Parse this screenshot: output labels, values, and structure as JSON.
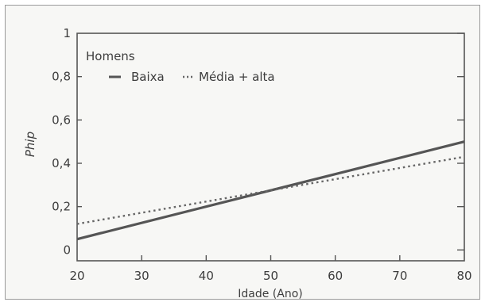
{
  "chart_data": {
    "type": "line",
    "title": "",
    "xlabel": "Idade (Ano)",
    "ylabel": "Phip",
    "xlim": [
      20,
      80
    ],
    "ylim": [
      -0.05,
      1.0
    ],
    "x_ticks": [
      "20",
      "30",
      "40",
      "50",
      "60",
      "70",
      "80"
    ],
    "y_ticks": [
      "0",
      "0,2",
      "0,4",
      "0,6",
      "0,8",
      "1"
    ],
    "legend_title": "Homens",
    "legend_position": "top-left",
    "grid": false,
    "series": [
      {
        "name": "Baixa",
        "style": "solid",
        "color": "#555555",
        "x": [
          20,
          80
        ],
        "y": [
          0.05,
          0.5
        ]
      },
      {
        "name": "Média + alta",
        "style": "dotted",
        "color": "#666666",
        "x": [
          20,
          80
        ],
        "y": [
          0.12,
          0.43
        ]
      }
    ]
  }
}
